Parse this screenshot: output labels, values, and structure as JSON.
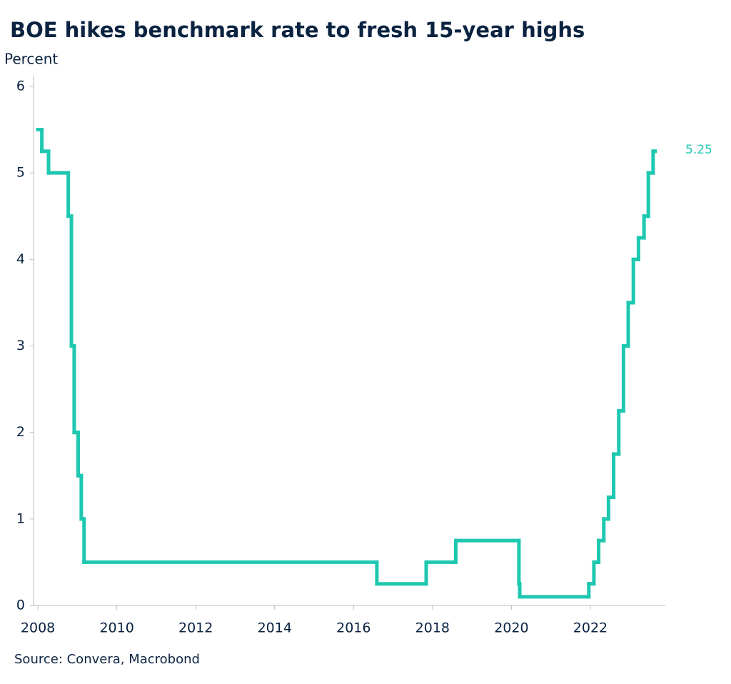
{
  "chart_data": {
    "type": "line",
    "title": "BOE hikes benchmark rate to fresh 15-year highs",
    "y_axis_label": "Percent",
    "source": "Source: Convera, Macrobond",
    "step": true,
    "color": "#1ec8b0",
    "x": [
      2008.0,
      2008.1,
      2008.27,
      2008.77,
      2008.85,
      2008.92,
      2009.02,
      2009.1,
      2009.17,
      2016.59,
      2017.84,
      2018.59,
      2020.19,
      2020.21,
      2021.96,
      2022.09,
      2022.21,
      2022.34,
      2022.46,
      2022.59,
      2022.72,
      2022.84,
      2022.96,
      2023.09,
      2023.22,
      2023.36,
      2023.47,
      2023.59,
      2023.64
    ],
    "values": [
      5.5,
      5.25,
      5.0,
      4.5,
      3.0,
      2.0,
      1.5,
      1.0,
      0.5,
      0.25,
      0.5,
      0.75,
      0.25,
      0.1,
      0.25,
      0.5,
      0.75,
      1.0,
      1.25,
      1.75,
      2.25,
      3.0,
      3.5,
      4.0,
      4.25,
      4.5,
      5.0,
      5.25,
      5.25
    ],
    "last_value_label": "5.25",
    "xlim": [
      2007.89,
      2023.9
    ],
    "xticks": [
      2008,
      2010,
      2012,
      2014,
      2016,
      2018,
      2020,
      2022
    ],
    "ylim": [
      0,
      6
    ],
    "yticks": [
      0,
      1,
      2,
      3,
      4,
      5,
      6
    ]
  }
}
